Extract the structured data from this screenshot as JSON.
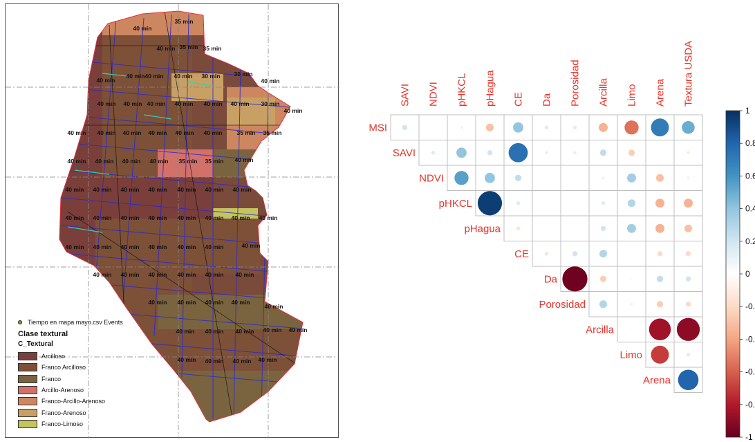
{
  "map": {
    "time_labels": [
      {
        "t": "40 min",
        "x": 198,
        "y": 38
      },
      {
        "t": "35 min",
        "x": 258,
        "y": 28
      },
      {
        "t": "40 min",
        "x": 232,
        "y": 67
      },
      {
        "t": "35 min",
        "x": 265,
        "y": 65
      },
      {
        "t": "35 min",
        "x": 299,
        "y": 67
      },
      {
        "t": "40 min",
        "x": 188,
        "y": 107
      },
      {
        "t": "40 min",
        "x": 215,
        "y": 107
      },
      {
        "t": "40 min",
        "x": 257,
        "y": 107
      },
      {
        "t": "30 min",
        "x": 297,
        "y": 107
      },
      {
        "t": "30 min",
        "x": 344,
        "y": 104
      },
      {
        "t": "40 min",
        "x": 383,
        "y": 114
      },
      {
        "t": "40 min",
        "x": 145,
        "y": 113
      },
      {
        "t": "40 min",
        "x": 146,
        "y": 147
      },
      {
        "t": "40 min",
        "x": 184,
        "y": 147
      },
      {
        "t": "40 min",
        "x": 218,
        "y": 147
      },
      {
        "t": "40 min",
        "x": 258,
        "y": 147
      },
      {
        "t": "40 min",
        "x": 300,
        "y": 147
      },
      {
        "t": "40 min",
        "x": 339,
        "y": 147
      },
      {
        "t": "30 min",
        "x": 383,
        "y": 147
      },
      {
        "t": "40 min",
        "x": 416,
        "y": 157
      },
      {
        "t": "40 min",
        "x": 103,
        "y": 189
      },
      {
        "t": "40 min",
        "x": 146,
        "y": 189
      },
      {
        "t": "40 min",
        "x": 183,
        "y": 189
      },
      {
        "t": "40 min",
        "x": 220,
        "y": 189
      },
      {
        "t": "40 min",
        "x": 259,
        "y": 189
      },
      {
        "t": "40 min",
        "x": 300,
        "y": 189
      },
      {
        "t": "35 min",
        "x": 348,
        "y": 189
      },
      {
        "t": "35 min",
        "x": 386,
        "y": 189
      },
      {
        "t": "40 min",
        "x": 103,
        "y": 230
      },
      {
        "t": "40 min",
        "x": 143,
        "y": 230
      },
      {
        "t": "40 min",
        "x": 182,
        "y": 230
      },
      {
        "t": "40 min",
        "x": 222,
        "y": 230
      },
      {
        "t": "35 min",
        "x": 264,
        "y": 230
      },
      {
        "t": "35 min",
        "x": 302,
        "y": 230
      },
      {
        "t": "40 min",
        "x": 345,
        "y": 228
      },
      {
        "t": "40 min",
        "x": 100,
        "y": 271
      },
      {
        "t": "40 min",
        "x": 140,
        "y": 271
      },
      {
        "t": "40 min",
        "x": 180,
        "y": 271
      },
      {
        "t": "40 min",
        "x": 220,
        "y": 271
      },
      {
        "t": "40 min",
        "x": 262,
        "y": 271
      },
      {
        "t": "40 min",
        "x": 302,
        "y": 271
      },
      {
        "t": "40 min",
        "x": 342,
        "y": 271
      },
      {
        "t": "40 min",
        "x": 100,
        "y": 312
      },
      {
        "t": "40 min",
        "x": 140,
        "y": 312
      },
      {
        "t": "40 min",
        "x": 180,
        "y": 312
      },
      {
        "t": "40 min",
        "x": 220,
        "y": 312
      },
      {
        "t": "40 min",
        "x": 262,
        "y": 312
      },
      {
        "t": "40 min",
        "x": 302,
        "y": 312
      },
      {
        "t": "40 min",
        "x": 340,
        "y": 312
      },
      {
        "t": "40 min",
        "x": 380,
        "y": 312
      },
      {
        "t": "40 min",
        "x": 100,
        "y": 354
      },
      {
        "t": "40 min",
        "x": 140,
        "y": 354
      },
      {
        "t": "40 min",
        "x": 180,
        "y": 354
      },
      {
        "t": "40 min",
        "x": 220,
        "y": 354
      },
      {
        "t": "40 min",
        "x": 262,
        "y": 354
      },
      {
        "t": "40 min",
        "x": 302,
        "y": 354
      },
      {
        "t": "40 min",
        "x": 355,
        "y": 352
      },
      {
        "t": "40 min",
        "x": 140,
        "y": 394
      },
      {
        "t": "40 min",
        "x": 180,
        "y": 394
      },
      {
        "t": "40 min",
        "x": 220,
        "y": 394
      },
      {
        "t": "40 min",
        "x": 262,
        "y": 394
      },
      {
        "t": "40 min",
        "x": 302,
        "y": 394
      },
      {
        "t": "40 min",
        "x": 346,
        "y": 394
      },
      {
        "t": "40 min",
        "x": 220,
        "y": 434
      },
      {
        "t": "40 min",
        "x": 262,
        "y": 434
      },
      {
        "t": "40 min",
        "x": 302,
        "y": 434
      },
      {
        "t": "40 min",
        "x": 340,
        "y": 434
      },
      {
        "t": "40 min",
        "x": 388,
        "y": 440
      },
      {
        "t": "40 min",
        "x": 260,
        "y": 476
      },
      {
        "t": "40 min",
        "x": 302,
        "y": 476
      },
      {
        "t": "40 min",
        "x": 346,
        "y": 476
      },
      {
        "t": "40 min",
        "x": 386,
        "y": 474
      },
      {
        "t": "40 min",
        "x": 423,
        "y": 474
      },
      {
        "t": "40 min",
        "x": 262,
        "y": 517
      },
      {
        "t": "40 min",
        "x": 302,
        "y": 519
      },
      {
        "t": "40 min",
        "x": 342,
        "y": 519
      },
      {
        "t": "40 min",
        "x": 379,
        "y": 517
      }
    ],
    "legend": {
      "events_label": "Tiempo en mapa mayo.csv Events",
      "title": "Clase textural",
      "subtitle": "C_Textural",
      "classes": [
        {
          "label": "Arcilloso",
          "color": "#7a3f3b"
        },
        {
          "label": "Franco Arcilloso",
          "color": "#7d5038"
        },
        {
          "label": "Franco",
          "color": "#7a6440"
        },
        {
          "label": "Arcillo-Arenoso",
          "color": "#d2706a"
        },
        {
          "label": "Franco-Arcillo-Arenoso",
          "color": "#cc8660"
        },
        {
          "label": "Franco-Arenoso",
          "color": "#c9a064"
        },
        {
          "label": "Franco-Limoso",
          "color": "#c6c45e"
        }
      ]
    }
  },
  "chart_data": {
    "type": "heatmap",
    "variables": [
      "MSI",
      "SAVI",
      "NDVI",
      "pHKCL",
      "pHagua",
      "CE",
      "Da",
      "Porosidad",
      "Arcilla",
      "Limo",
      "Arena",
      "Textura USDA"
    ],
    "column_labels": [
      "SAVI",
      "NDVI",
      "pHKCL",
      "pHagua",
      "CE",
      "Da",
      "Porosidad",
      "Arcilla",
      "Limo",
      "Arena",
      "Textura USDA"
    ],
    "row_labels": [
      "MSI",
      "SAVI",
      "NDVI",
      "pHKCL",
      "pHagua",
      "CE",
      "Da",
      "Porosidad",
      "Arcilla",
      "Limo",
      "Arena"
    ],
    "matrix_upper": [
      [
        0.2,
        0.02,
        -0.1,
        -0.3,
        0.4,
        0.15,
        -0.15,
        -0.35,
        -0.55,
        0.7,
        0.5
      ],
      [
        0.15,
        0.4,
        0.2,
        0.75,
        -0.12,
        0.12,
        0.25,
        -0.25,
        0.0,
        -0.12
      ],
      [
        0.55,
        0.4,
        0.25,
        0.02,
        0.02,
        0.1,
        0.35,
        -0.3,
        -0.1
      ],
      [
        0.95,
        0.15,
        0.02,
        0.02,
        0.15,
        0.3,
        -0.35,
        -0.35
      ],
      [
        -0.15,
        0.04,
        0.04,
        0.2,
        0.35,
        -0.35,
        -0.3
      ],
      [
        -0.15,
        0.2,
        0.3,
        0.02,
        -0.2,
        -0.2
      ],
      [
        -0.98,
        -0.25,
        -0.06,
        0.25,
        0.2
      ],
      [
        0.3,
        0.1,
        -0.25,
        -0.2
      ],
      [
        -0.06,
        -0.85,
        -0.9
      ],
      [
        -0.7,
        -0.15
      ],
      [
        0.8
      ]
    ],
    "color_scale": {
      "min": -1,
      "max": 1,
      "ticks": [
        "1",
        "0.8",
        "0.6",
        "0.4",
        "0.2",
        "0",
        "-0.2",
        "-0.4",
        "-0.6",
        "-0.8",
        "-1"
      ]
    }
  },
  "colors": {
    "label_red": "#e8332a",
    "grid": "#bfbfbf"
  }
}
